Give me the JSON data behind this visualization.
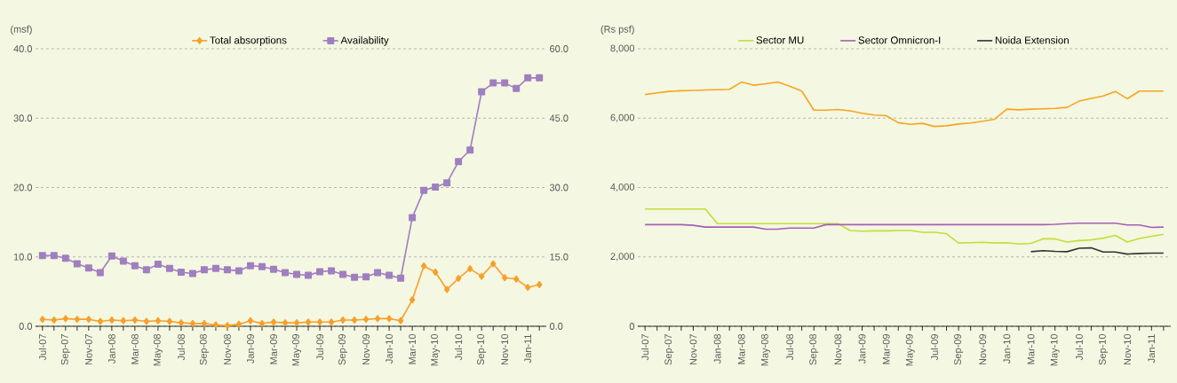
{
  "chart_data": [
    {
      "type": "line",
      "ylabel": "(msf)",
      "categories": [
        "Jul-07",
        null,
        "Sep-07",
        null,
        "Nov-07",
        null,
        "Jan-08",
        null,
        "Mar-08",
        null,
        "May-08",
        null,
        "Jul-08",
        null,
        "Sep-08",
        null,
        "Nov-08",
        null,
        "Jan-09",
        null,
        "Mar-09",
        null,
        "May-09",
        null,
        "Jul-09",
        null,
        "Sep-09",
        null,
        "Nov-09",
        null,
        "Jan-10",
        null,
        "Mar-10",
        null,
        "May-10",
        null,
        "Jul-10",
        null,
        "Sep-10",
        null,
        "Nov-10",
        null,
        "Jan-11",
        null
      ],
      "series": [
        {
          "name": "Total absorptions",
          "color": "#f7a02a",
          "marker": "diamond",
          "values": [
            1.0,
            0.9,
            1.1,
            1.0,
            1.0,
            0.7,
            0.9,
            0.8,
            0.9,
            0.7,
            0.8,
            0.7,
            0.5,
            0.4,
            0.4,
            0.2,
            0.1,
            0.3,
            0.8,
            0.4,
            0.6,
            0.5,
            0.5,
            0.6,
            0.6,
            0.6,
            0.9,
            0.9,
            1.0,
            1.1,
            1.1,
            0.8,
            3.8,
            8.7,
            7.8,
            5.3,
            6.9,
            8.3,
            7.2,
            9.0,
            7.0,
            6.8,
            5.6,
            6.0
          ]
        },
        {
          "name": "Availability",
          "color": "#a07fc0",
          "marker": "square",
          "axis": "y2",
          "values": [
            15.3,
            15.3,
            14.7,
            13.5,
            12.6,
            11.6,
            15.2,
            14.1,
            13.1,
            12.2,
            13.4,
            12.5,
            11.7,
            11.4,
            12.2,
            12.5,
            12.2,
            12.0,
            13.1,
            12.9,
            12.3,
            11.6,
            11.2,
            11.0,
            11.8,
            12.0,
            11.2,
            10.6,
            10.7,
            11.6,
            11.0,
            10.4,
            23.5,
            29.4,
            30.1,
            31.0,
            35.6,
            38.1,
            50.7,
            52.6,
            52.6,
            51.4,
            53.7,
            53.7
          ]
        }
      ],
      "ylim": [
        0,
        40
      ],
      "yticks": [
        {
          "value": 0,
          "label": "0.0"
        },
        {
          "value": 10,
          "label": "10.0"
        },
        {
          "value": 20,
          "label": "20.0"
        },
        {
          "value": 30,
          "label": "30.0"
        },
        {
          "value": 40,
          "label": "40.0"
        }
      ],
      "y2lim": [
        0,
        60
      ],
      "y2ticks": [
        {
          "value": 0,
          "label": "0.0"
        },
        {
          "value": 15,
          "label": "15.0"
        },
        {
          "value": 30,
          "label": "30.0"
        },
        {
          "value": 45,
          "label": "45.0"
        },
        {
          "value": 60,
          "label": "60.0"
        }
      ],
      "grid": "y",
      "legend": "top"
    },
    {
      "type": "line",
      "ylabel": "(Rs psf)",
      "categories": [
        "Jul-07",
        null,
        "Sep-07",
        null,
        "Nov-07",
        null,
        "Jan-08",
        null,
        "Mar-08",
        null,
        "May-08",
        null,
        "Jul-08",
        null,
        "Sep-08",
        null,
        "Nov-08",
        null,
        "Jan-09",
        null,
        "Mar-09",
        null,
        "May-09",
        null,
        "Jul-09",
        null,
        "Sep-09",
        null,
        "Nov-09",
        null,
        "Jan-10",
        null,
        "Mar-10",
        null,
        "May-10",
        null,
        "Jul-10",
        null,
        "Sep-10",
        null,
        "Nov-10",
        null,
        "Jan-11",
        null
      ],
      "series": [
        {
          "name": "Sector MU",
          "color": "#c5dc3a",
          "values": [
            3380,
            3380,
            3380,
            3380,
            3380,
            3380,
            2960,
            2960,
            2960,
            2960,
            2960,
            2960,
            2960,
            2960,
            2960,
            2960,
            2960,
            2760,
            2740,
            2750,
            2750,
            2760,
            2760,
            2710,
            2710,
            2670,
            2400,
            2410,
            2420,
            2400,
            2410,
            2370,
            2390,
            2520,
            2520,
            2430,
            2470,
            2490,
            2540,
            2620,
            2430,
            2530,
            2590,
            2650
          ]
        },
        {
          "name": "Sector Omnicron-I",
          "color": "#a45fb4",
          "values": [
            2930,
            2930,
            2930,
            2930,
            2910,
            2860,
            2860,
            2860,
            2860,
            2860,
            2800,
            2800,
            2830,
            2830,
            2830,
            2930,
            2930,
            2930,
            2930,
            2930,
            2930,
            2930,
            2930,
            2930,
            2930,
            2930,
            2930,
            2930,
            2930,
            2930,
            2930,
            2930,
            2930,
            2930,
            2940,
            2960,
            2970,
            2970,
            2970,
            2970,
            2920,
            2920,
            2850,
            2860
          ]
        },
        {
          "color": "#f7a51f",
          "values": [
            6680,
            6730,
            6770,
            6790,
            6800,
            6810,
            6820,
            6830,
            7040,
            6950,
            6990,
            7040,
            6920,
            6780,
            6230,
            6230,
            6250,
            6210,
            6140,
            6090,
            6070,
            5870,
            5820,
            5850,
            5760,
            5780,
            5830,
            5860,
            5910,
            5970,
            6260,
            6240,
            6260,
            6270,
            6280,
            6310,
            6490,
            6570,
            6640,
            6770,
            6560,
            6780,
            6780,
            6780
          ]
        },
        {
          "name": "Noida Extension",
          "color": "#333333",
          "values": [
            null,
            null,
            null,
            null,
            null,
            null,
            null,
            null,
            null,
            null,
            null,
            null,
            null,
            null,
            null,
            null,
            null,
            null,
            null,
            null,
            null,
            null,
            null,
            null,
            null,
            null,
            null,
            null,
            null,
            null,
            null,
            null,
            2150,
            2180,
            2160,
            2150,
            2250,
            2260,
            2140,
            2140,
            2080,
            2100,
            2110,
            2110
          ]
        }
      ],
      "ylim": [
        0,
        8000
      ],
      "yticks": [
        0,
        {
          "value": 2000,
          "label": "2,000"
        },
        {
          "value": 4000,
          "label": "4,000"
        },
        {
          "value": 6000,
          "label": "6,000"
        },
        {
          "value": 8000,
          "label": "8,000"
        }
      ],
      "grid": "y",
      "legend": "top"
    }
  ]
}
